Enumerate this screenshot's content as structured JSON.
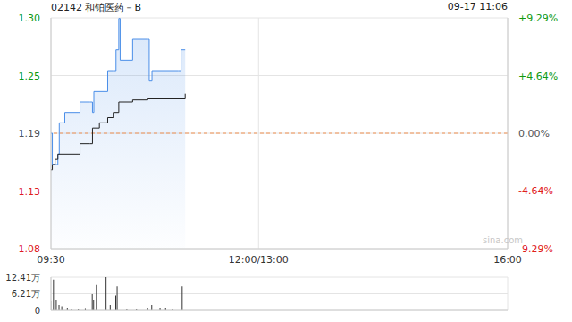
{
  "chart_data": [
    {
      "type": "line",
      "title": "02142 和铂医药－B",
      "subtitle": "09-17 11:06",
      "annotation": "sina.com",
      "xlim": [
        0,
        330
      ],
      "xticks": [
        {
          "value": 0,
          "label": "09:30"
        },
        {
          "value": 150,
          "label": "12:00/13:00"
        },
        {
          "value": 330,
          "label": "16:00"
        }
      ],
      "ylim": [
        1.0794,
        1.3006
      ],
      "yticks": [
        {
          "value": 1.3006,
          "label": "1.30"
        },
        {
          "value": 1.2453,
          "label": "1.25"
        },
        {
          "value": 1.19,
          "label": "1.19"
        },
        {
          "value": 1.1347,
          "label": "1.13"
        },
        {
          "value": 1.0794,
          "label": "1.08"
        }
      ],
      "y2lim": [
        -9.29,
        9.29
      ],
      "y2ticks": [
        {
          "value": 9.29,
          "label": "+9.29%"
        },
        {
          "value": 4.64,
          "label": "+4.64%"
        },
        {
          "value": 0,
          "label": "0.00%"
        },
        {
          "value": -4.64,
          "label": "-4.64%"
        },
        {
          "value": -9.29,
          "label": "-9.29%"
        }
      ],
      "grid": true,
      "series": [
        {
          "type": "area",
          "color": "#4a8ee8",
          "line_style": "step",
          "x": [
            0,
            1,
            3,
            5,
            6,
            8,
            10,
            20,
            21,
            28,
            30,
            31,
            39,
            41,
            45,
            47,
            49,
            50,
            57,
            59,
            70,
            71,
            73,
            92,
            94,
            97
          ],
          "values": [
            1.19,
            1.16,
            1.16,
            1.17,
            1.2,
            1.2,
            1.21,
            1.21,
            1.22,
            1.22,
            1.21,
            1.23,
            1.23,
            1.25,
            1.25,
            1.27,
            1.3,
            1.26,
            1.26,
            1.28,
            1.28,
            1.24,
            1.25,
            1.25,
            1.27,
            1.27
          ]
        },
        {
          "type": "line",
          "color": "#222222",
          "line_style": "step",
          "x": [
            0,
            1,
            3,
            5,
            20,
            21,
            28,
            30,
            35,
            41,
            45,
            49,
            59,
            70,
            97
          ],
          "values": [
            1.155,
            1.16,
            1.165,
            1.17,
            1.17,
            1.18,
            1.18,
            1.195,
            1.2,
            1.205,
            1.21,
            1.22,
            1.222,
            1.223,
            1.228
          ]
        }
      ]
    },
    {
      "type": "bar",
      "color": "#333333",
      "xlim": [
        0,
        330
      ],
      "xticks": [
        0,
        150,
        330
      ],
      "tick_labels": "y",
      "ylim": [
        0,
        12.41
      ],
      "yticks": [
        {
          "value": 0,
          "label": "0"
        },
        {
          "value": 6.21,
          "label": "6.21万"
        },
        {
          "value": 12.41,
          "label": "12.41万"
        }
      ],
      "grid": true,
      "x": [
        0,
        2,
        4,
        6,
        8,
        12,
        15,
        20,
        25,
        30,
        31,
        33,
        40,
        43,
        47,
        48,
        55,
        62,
        70,
        73,
        79,
        83,
        88,
        95
      ],
      "values": [
        3.5,
        11.5,
        4,
        2,
        1.5,
        1,
        0.5,
        0.6,
        0.8,
        6,
        4,
        9.5,
        12.41,
        2,
        5.5,
        9,
        0.5,
        0.6,
        1,
        2,
        1,
        1,
        0.5,
        9
      ]
    }
  ]
}
